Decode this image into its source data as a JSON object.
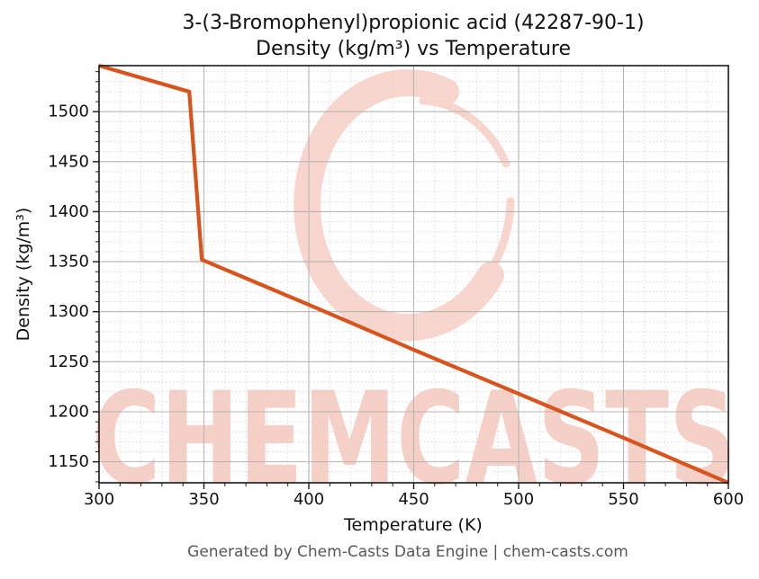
{
  "title": {
    "line1": "3-(3-Bromophenyl)propionic acid (42287-90-1)",
    "line2": "Density (kg/m³) vs Temperature"
  },
  "footer": {
    "text": "Generated by Chem-Casts Data Engine | chem-casts.com"
  },
  "watermark": {
    "text": "CHEMCASTS",
    "text_color": "#f6d0c7",
    "logo_color": "#f8d6cd"
  },
  "style": {
    "line_color": "#d9541c",
    "grid_major_color": "#b5b5b5",
    "grid_minor_color": "#d6d6d6",
    "spine_color": "#1a1a1a",
    "tick_color": "#1a1a1a",
    "text_color": "#111111",
    "footer_color": "#575757",
    "background": "#ffffff"
  },
  "chart_data": {
    "type": "line",
    "title": "3-(3-Bromophenyl)propionic acid (42287-90-1) — Density (kg/m³) vs Temperature",
    "xlabel": "Temperature (K)",
    "ylabel": "Density (kg/m³)",
    "xlim": [
      300,
      600
    ],
    "ylim": [
      1129,
      1546
    ],
    "xticks": [
      300,
      350,
      400,
      450,
      500,
      550,
      600
    ],
    "yticks": [
      1150,
      1200,
      1250,
      1300,
      1350,
      1400,
      1450,
      1500
    ],
    "x_minor_step": 10,
    "y_minor_step": 10,
    "grid": {
      "major": true,
      "minor": true
    },
    "legend_position": "none",
    "series": [
      {
        "name": "Density (kg/m³)",
        "color": "#d9541c",
        "x": [
          300,
          343,
          349,
          400,
          450,
          500,
          550,
          600
        ],
        "y": [
          1546,
          1520,
          1352,
          1307,
          1262,
          1218,
          1174,
          1129
        ]
      }
    ]
  }
}
